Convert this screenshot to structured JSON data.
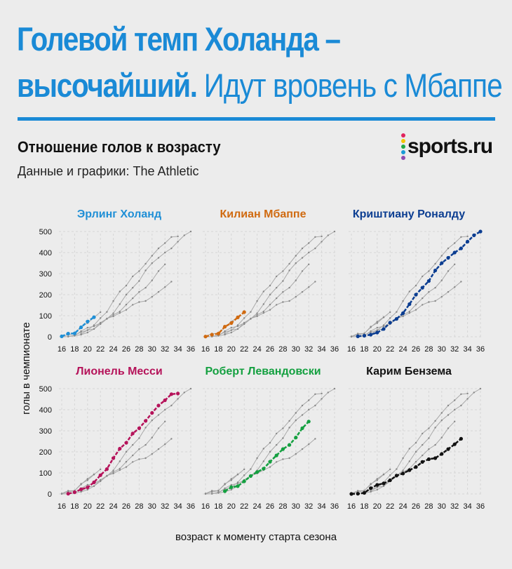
{
  "header": {
    "title_line1": "Голевой темп Холанда –",
    "title_line2_bold": "высочайший.",
    "title_line2_regular": "Идут вровень с Мбаппе",
    "subtitle": "Отношение голов к возрасту",
    "source": "Данные и графики: The Athletic",
    "logo_text": "sports.ru",
    "logo_dot_colors": [
      "#e0245e",
      "#f5c400",
      "#22a846",
      "#1a9ad6",
      "#8e4bb0"
    ],
    "accent_color": "#1a8ad6"
  },
  "chart_data": {
    "type": "line",
    "ylabel": "голы в чемпионате",
    "xlabel": "возраст к моменту старта сезона",
    "xlim": [
      16,
      36
    ],
    "ylim": [
      0,
      500
    ],
    "x_ticks": [
      16,
      18,
      20,
      22,
      24,
      26,
      28,
      30,
      32,
      34,
      36
    ],
    "y_ticks": [
      0,
      100,
      200,
      300,
      400,
      500
    ],
    "grid": true,
    "other_series_color": "#a8a8a8",
    "series": [
      {
        "name": "Эрлинг Холанд",
        "color": "#1f8fd6",
        "x": [
          16,
          17,
          18,
          19,
          20,
          21
        ],
        "y": [
          2,
          15,
          16,
          45,
          72,
          93
        ]
      },
      {
        "name": "Килиан Мбаппе",
        "color": "#d06a10",
        "x": [
          16,
          17,
          18,
          19,
          20,
          21,
          22
        ],
        "y": [
          1,
          10,
          15,
          48,
          65,
          92,
          117
        ]
      },
      {
        "name": "Криштиану Роналду",
        "color": "#0b3d91",
        "x": [
          17,
          18,
          19,
          20,
          21,
          22,
          23,
          24,
          25,
          26,
          27,
          28,
          29,
          30,
          31,
          32,
          33,
          34,
          35,
          36
        ],
        "y": [
          2,
          5,
          10,
          20,
          37,
          67,
          85,
          112,
          155,
          200,
          233,
          265,
          315,
          350,
          375,
          400,
          420,
          452,
          482,
          500
        ]
      },
      {
        "name": "Лионель Месси",
        "color": "#b5135a",
        "x": [
          17,
          18,
          19,
          20,
          21,
          22,
          23,
          24,
          25,
          26,
          27,
          28,
          29,
          30,
          31,
          32,
          33,
          34
        ],
        "y": [
          1,
          8,
          22,
          31,
          55,
          89,
          118,
          170,
          215,
          243,
          287,
          312,
          347,
          385,
          420,
          445,
          474,
          477
        ]
      },
      {
        "name": "Роберт Левандовски",
        "color": "#14a040",
        "x": [
          19,
          20,
          21,
          22,
          23,
          24,
          25,
          26,
          27,
          28,
          29,
          30,
          31,
          32
        ],
        "y": [
          13,
          32,
          37,
          60,
          85,
          104,
          120,
          153,
          183,
          213,
          233,
          268,
          312,
          344
        ]
      },
      {
        "name": "Карим Бензема",
        "color": "#111111",
        "x": [
          16,
          17,
          18,
          19,
          20,
          21,
          22,
          23,
          24,
          25,
          26,
          27,
          28,
          29,
          30,
          31,
          32,
          33
        ],
        "y": [
          0,
          1,
          5,
          27,
          43,
          50,
          65,
          87,
          97,
          113,
          128,
          152,
          165,
          170,
          190,
          213,
          236,
          262
        ]
      }
    ]
  }
}
